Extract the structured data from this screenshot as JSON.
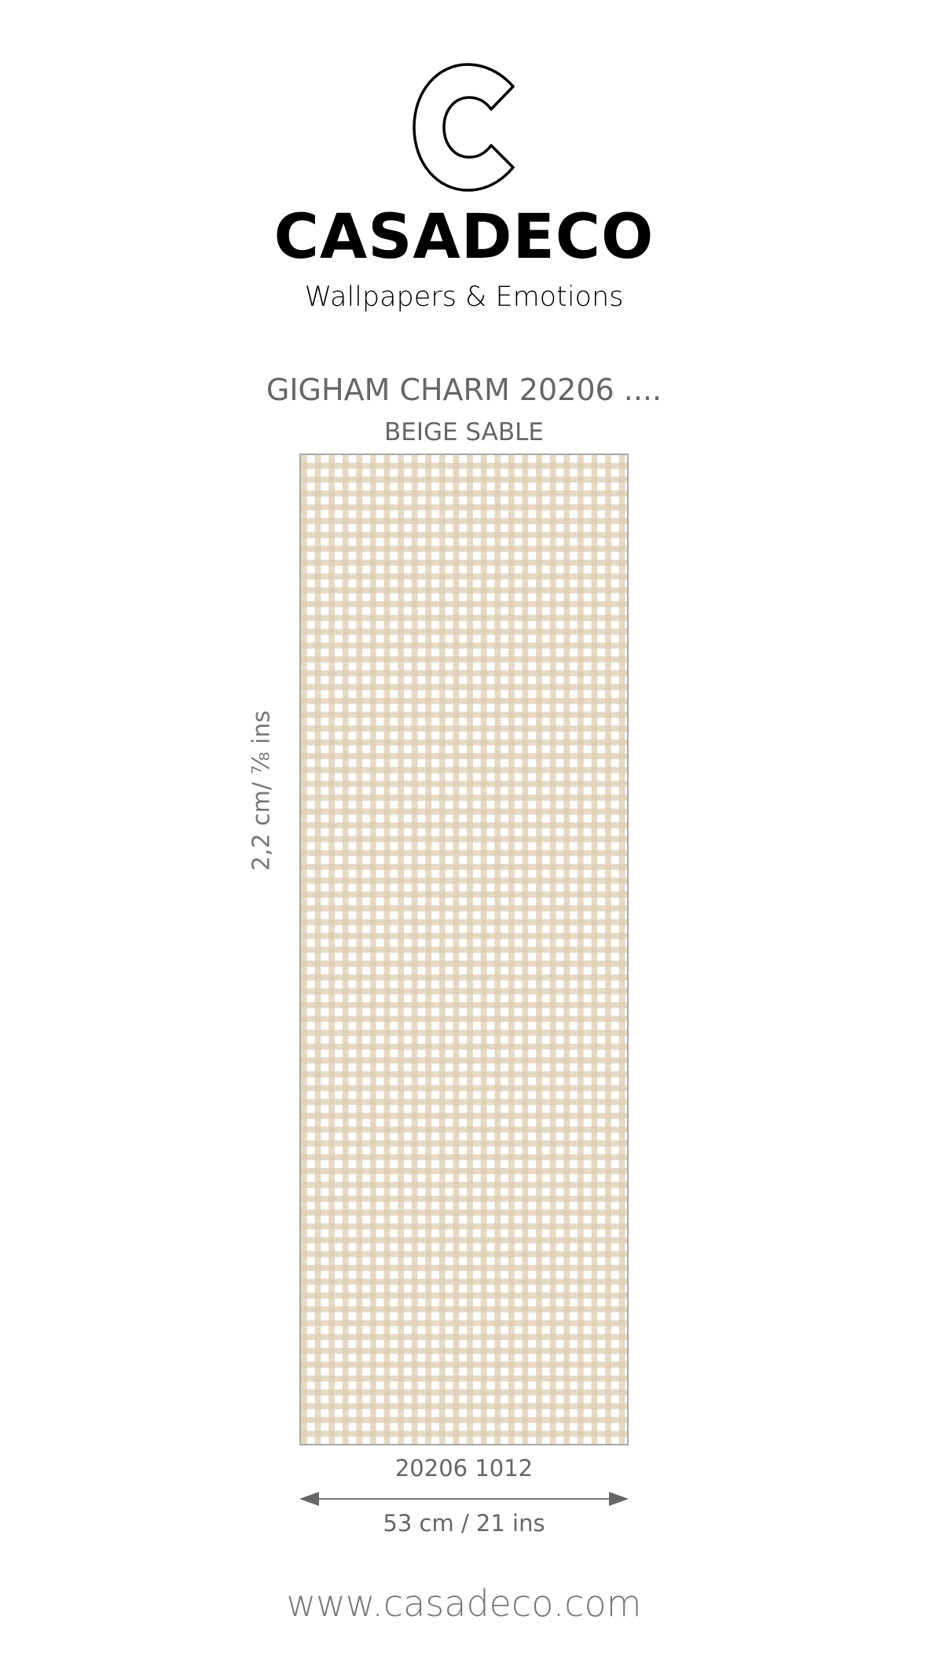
{
  "brand": {
    "name": "CASADECO",
    "tagline": "Wallpapers & Emotions",
    "logo_icon": "c-outline-logo"
  },
  "product": {
    "title": "GIGHAM CHARM 20206 ....",
    "color_name": "BEIGE SABLE",
    "code": "20206 1012",
    "repeat_height": "2,2 cm/ ⅞ ins",
    "width": "53 cm / 21 ins",
    "pattern": "gingham",
    "pattern_color": "#ddcdb2"
  },
  "footer": {
    "url": "www.casadeco.com"
  }
}
